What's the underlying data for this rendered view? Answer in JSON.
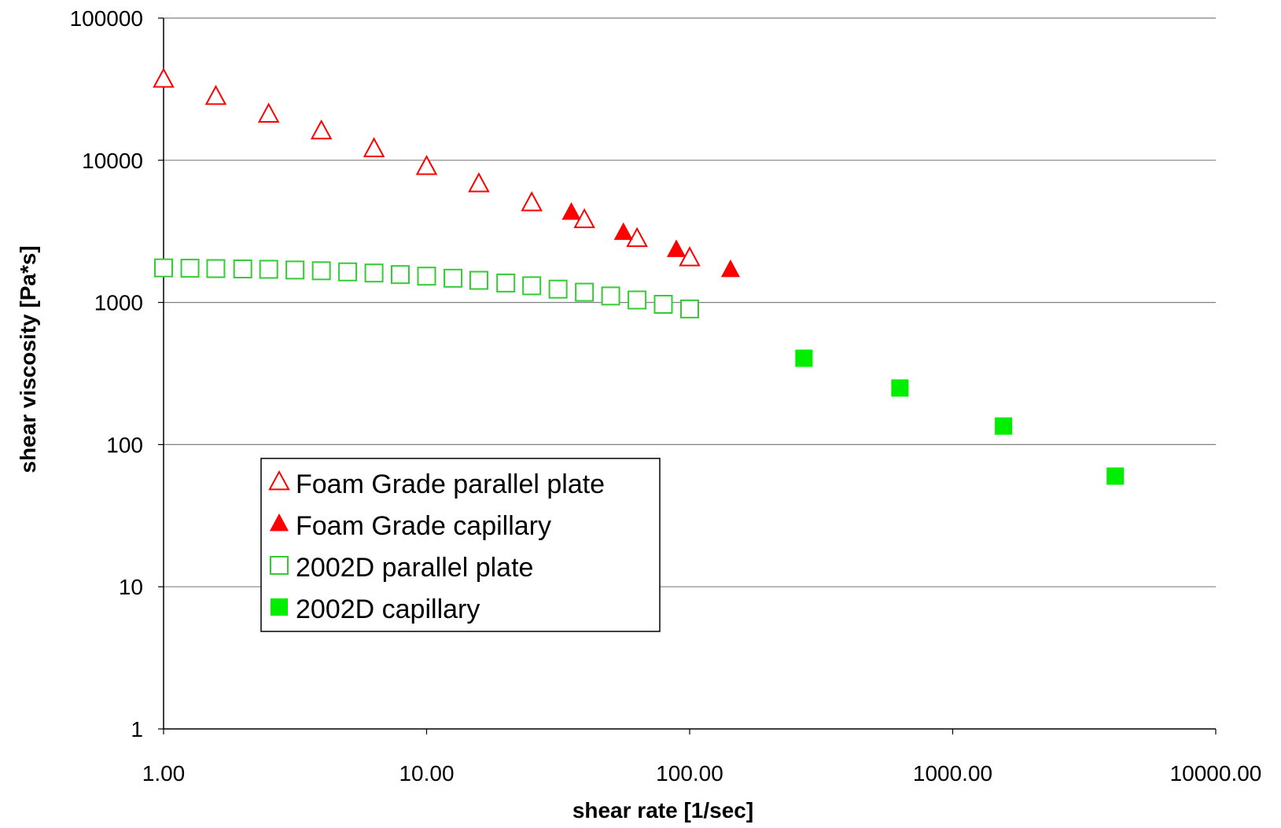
{
  "chart_data": {
    "type": "scatter",
    "title": "",
    "xlabel": "shear rate [1/sec]",
    "ylabel": "shear viscosity [Pa*s]",
    "x_scale": "log",
    "y_scale": "log",
    "xlim": [
      1,
      10000
    ],
    "ylim": [
      1,
      100000
    ],
    "x_ticks": [
      "1.00",
      "10.00",
      "100.00",
      "1000.00",
      "10000.00"
    ],
    "y_ticks": [
      "1",
      "10",
      "100",
      "1000",
      "10000",
      "100000"
    ],
    "grid": "horizontal major gridlines",
    "legend_position": "lower-left",
    "series": [
      {
        "name": "Foam Grade parallel plate",
        "marker": "triangle-open",
        "color": "#FF0000",
        "x": [
          1.0,
          1.58,
          2.51,
          3.98,
          6.31,
          10.0,
          15.8,
          25.1,
          39.8,
          63.1,
          100
        ],
        "y": [
          37000,
          28000,
          21000,
          16000,
          12000,
          9000,
          6800,
          5000,
          3800,
          2800,
          2050
        ]
      },
      {
        "name": "Foam Grade capillary",
        "marker": "triangle-filled",
        "color": "#FF0000",
        "x": [
          35.5,
          56,
          89,
          143
        ],
        "y": [
          4300,
          3100,
          2350,
          1700
        ]
      },
      {
        "name": "2002D parallel plate",
        "marker": "square-open",
        "color": "#33CC33",
        "x": [
          1.0,
          1.26,
          1.58,
          2.0,
          2.51,
          3.16,
          3.98,
          5.01,
          6.31,
          7.94,
          10.0,
          12.6,
          15.8,
          20.0,
          25.1,
          31.6,
          39.8,
          50.1,
          63.1,
          79.4,
          100
        ],
        "y": [
          1750,
          1740,
          1730,
          1720,
          1710,
          1690,
          1670,
          1640,
          1610,
          1570,
          1530,
          1480,
          1430,
          1370,
          1310,
          1240,
          1180,
          1110,
          1040,
          970,
          900
        ]
      },
      {
        "name": "2002D capillary",
        "marker": "square-filled",
        "color": "#00EE00",
        "x": [
          272,
          630,
          1560,
          4150
        ],
        "y": [
          405,
          250,
          135,
          60
        ]
      }
    ]
  }
}
